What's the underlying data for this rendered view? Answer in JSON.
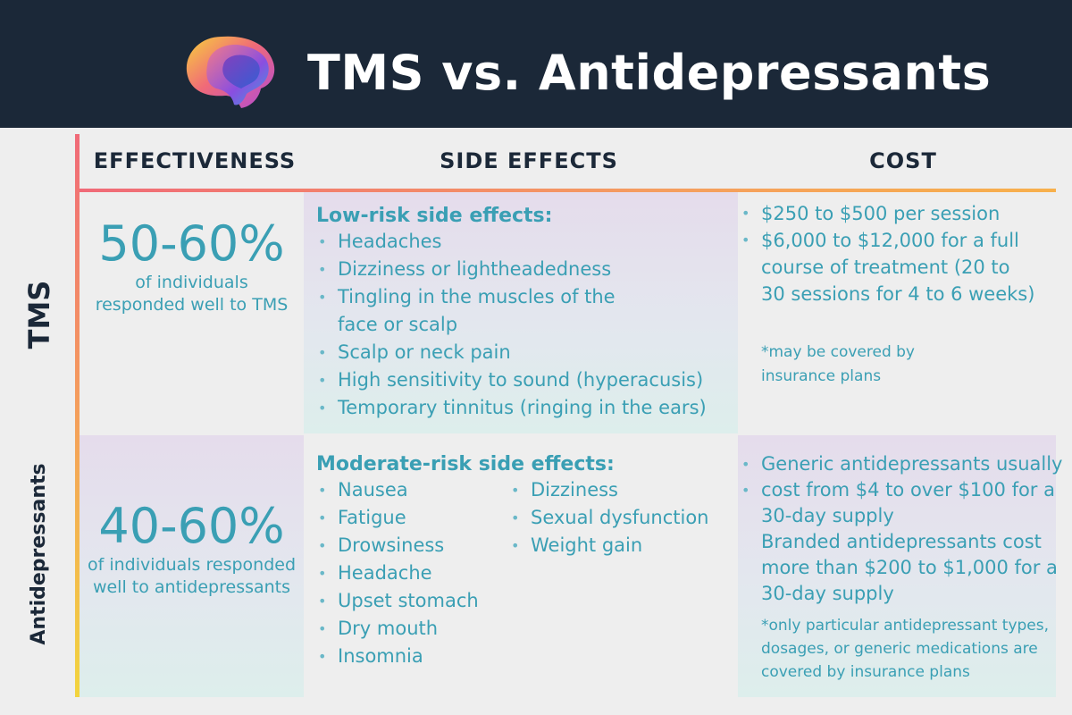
{
  "header": {
    "title": "TMS vs. Antidepressants",
    "logo_icon": "brain-icon"
  },
  "columns": {
    "effectiveness": "EFFECTIVENESS",
    "side_effects": "SIDE EFFECTS",
    "cost": "COST"
  },
  "rows": {
    "tms": {
      "label": "TMS",
      "effectiveness": {
        "value": "50-60%",
        "line1": "of individuals",
        "line2": "responded well to TMS"
      },
      "side_effects": {
        "heading": "Low-risk side effects:",
        "items": [
          "Headaches",
          "Dizziness or lightheadedness",
          "Tingling in the muscles of the",
          "Scalp or neck pain",
          "High sensitivity to sound (hyperacusis)",
          "Temporary tinnitus (ringing in the ears)"
        ],
        "item3_cont": "face or scalp"
      },
      "cost": {
        "item1": "$250 to $500 per session",
        "item2_line1": "$6,000 to $12,000 for a full",
        "item2_line2": "course of treatment (20 to",
        "item2_line3": "30 sessions for 4 to 6 weeks)",
        "note_line1": "*may be covered by",
        "note_line2": "insurance plans"
      }
    },
    "antidepressants": {
      "label": "Antidepressants",
      "effectiveness": {
        "value": "40-60%",
        "line1": "of individuals responded",
        "line2": "well to antidepressants"
      },
      "side_effects": {
        "heading": "Moderate-risk side effects:",
        "col1": [
          "Nausea",
          "Fatigue",
          "Drowsiness",
          "Headache",
          "Upset stomach",
          "Dry mouth",
          "Insomnia"
        ],
        "col2": [
          "Dizziness",
          "Sexual dysfunction",
          "Weight gain"
        ]
      },
      "cost": {
        "item1_line1": "Generic antidepressants usually",
        "item2_line1": "cost from $4 to over $100 for a",
        "item2_line2": "30-day supply",
        "line3": "Branded antidepressants cost",
        "line4": "more than $200 to $1,000 for a",
        "line5": "30-day supply",
        "note_line1": "*only particular antidepressant types,",
        "note_line2": "dosages, or generic medications are",
        "note_line3": "covered by insurance plans"
      }
    }
  },
  "colors": {
    "header_bg": "#1b2838",
    "accent_teal": "#3a9fb4",
    "gradient_pink": "#f06a78",
    "gradient_yellow": "#f2d43e"
  }
}
